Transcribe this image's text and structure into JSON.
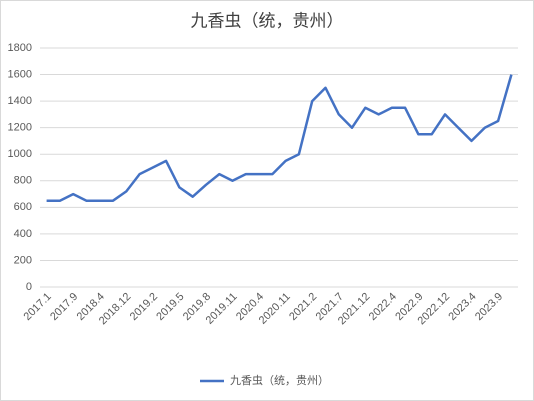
{
  "chart_data": {
    "type": "line",
    "title": "九香虫（统，贵州）",
    "categories": [
      "2017.1",
      null,
      "2017.9",
      null,
      "2018.4",
      null,
      "2018.12",
      null,
      "2019.2",
      null,
      "2019.5",
      null,
      "2019.8",
      null,
      "2019.11",
      null,
      "2020.4",
      null,
      "2020.11",
      null,
      "2021.2",
      null,
      "2021.7",
      null,
      "2021.12",
      null,
      "2022.4",
      null,
      "2022.9",
      null,
      "2022.12",
      null,
      "2023.4",
      null,
      "2023.9",
      null
    ],
    "series": [
      {
        "name": "九香虫（统，贵州）",
        "color": "#4472c4",
        "values": [
          650,
          650,
          700,
          650,
          650,
          650,
          720,
          850,
          900,
          950,
          750,
          680,
          770,
          850,
          800,
          850,
          850,
          850,
          950,
          1000,
          1400,
          1500,
          1300,
          1200,
          1350,
          1300,
          1350,
          1350,
          1150,
          1150,
          1300,
          1200,
          1100,
          1200,
          1250,
          1600
        ]
      }
    ],
    "ylim": [
      0,
      1800
    ],
    "yticks": [
      0,
      200,
      400,
      600,
      800,
      1000,
      1200,
      1400,
      1600,
      1800
    ],
    "grid": true,
    "legend": "bottom"
  }
}
